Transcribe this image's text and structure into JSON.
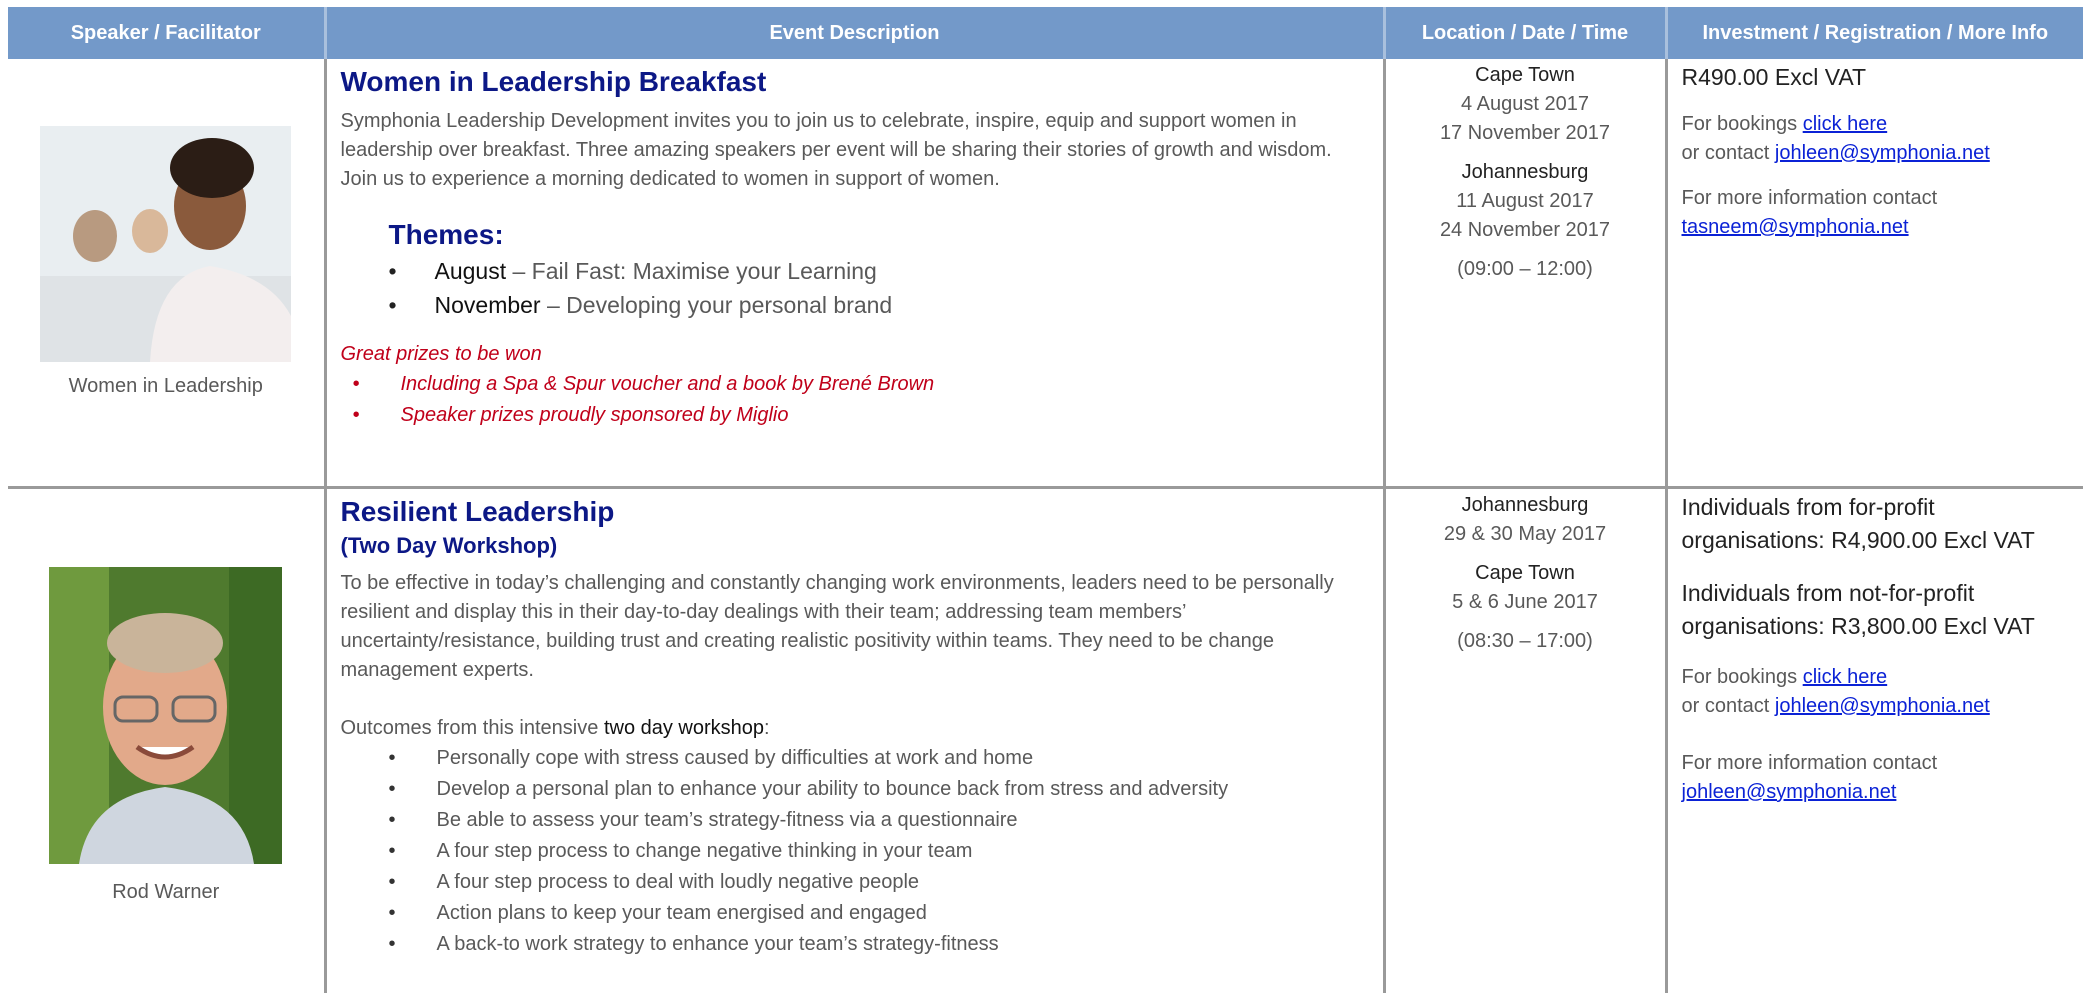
{
  "header": {
    "columns": [
      "Speaker / Facilitator",
      "Event Description",
      "Location / Date / Time",
      "Investment / Registration / More Info"
    ]
  },
  "rows": [
    {
      "speaker": "Women in Leadership",
      "title": "Women in Leadership Breakfast",
      "description": "Symphonia Leadership Development invites you to join us to celebrate, inspire, equip and support women in leadership over breakfast.   Three amazing speakers per event will be sharing their stories of growth and wisdom.  Join us to experience a morning dedicated to women in support of women.",
      "themes_heading": "Themes:",
      "themes": [
        {
          "month": "August",
          "text": "– Fail Fast: Maximise your Learning"
        },
        {
          "month": "November",
          "text": "– Developing your personal brand"
        }
      ],
      "prizes_heading": "Great prizes to be won",
      "prizes": [
        "Including a Spa & Spur voucher and a book by Brené Brown",
        "Speaker prizes proudly sponsored by Miglio"
      ],
      "venues": [
        {
          "city": "Cape Town",
          "dates": [
            "4 August 2017",
            "17 November 2017"
          ]
        },
        {
          "city": "Johannesburg",
          "dates": [
            "11 August 2017",
            "24 November 2017"
          ]
        }
      ],
      "time": "(09:00 – 12:00)",
      "prices": [
        "R490.00 Excl VAT"
      ],
      "bookings": {
        "text": "For bookings",
        "link": "click here"
      },
      "contact": {
        "text": "or contact",
        "email": "johleen@symphonia.net"
      },
      "info": {
        "text": "For more information contact",
        "email": "tasneem@symphonia.net"
      }
    },
    {
      "speaker": "Rod Warner",
      "title": "Resilient Leadership",
      "subtitle": "(Two Day Workshop)",
      "description": "To be effective in today’s challenging and constantly changing work environments, leaders need to be personally resilient and display this in their day-to-day dealings with their team; addressing team members’ uncertainty/resistance, building trust and creating realistic positivity within teams. They need to be change management experts.",
      "outcomes_intro": "Outcomes from this intensive",
      "outcomes_emphasis": "two day workshop",
      "outcomes_suffix": ":",
      "outcomes": [
        "Personally cope with stress caused by difficulties at work and home",
        "Develop a personal plan to enhance your ability to bounce back from stress and adversity",
        "Be able to assess your team’s strategy-fitness via a questionnaire",
        "A four step process to change negative thinking in your team",
        "A four step process to deal with loudly negative people",
        "Action plans to keep your team energised and engaged",
        "A back-to work strategy to enhance your team’s strategy-fitness"
      ],
      "venues": [
        {
          "city": "Johannesburg",
          "dates": [
            "29 & 30 May 2017"
          ]
        },
        {
          "city": "Cape Town",
          "dates": [
            "5 & 6 June 2017"
          ]
        }
      ],
      "time": "(08:30 – 17:00)",
      "prices": [
        "Individuals from for-profit organisations: R4,900.00 Excl VAT",
        "Individuals from not-for-profit organisations: R3,800.00 Excl VAT"
      ],
      "bookings": {
        "text": "For bookings",
        "link": "click here"
      },
      "contact": {
        "text": "or contact",
        "email": "johleen@symphonia.net"
      },
      "info": {
        "text": "For more information contact",
        "email": "johleen@symphonia.net"
      }
    }
  ]
}
